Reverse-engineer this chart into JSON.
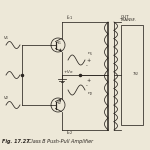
{
  "bg_color": "#ede8d8",
  "line_color": "#2a2520",
  "text_color": "#2a2520",
  "fig_label": "Fig. 17.27",
  "fig_title": "Class B Push-Pull Amplifier",
  "title_right1": "OUT",
  "title_right2": "TRANSF.",
  "vcc_label": "+ V_cc",
  "ic1_label": "I_c1",
  "ic2_label": "I_c2",
  "v1_label": "V_1",
  "v2_label": "V_2",
  "n1_label": "n_1",
  "n2_label": "n_2",
  "q1_label": "Q_1",
  "q2_label": "Q_2",
  "tr_label": "T_r2"
}
